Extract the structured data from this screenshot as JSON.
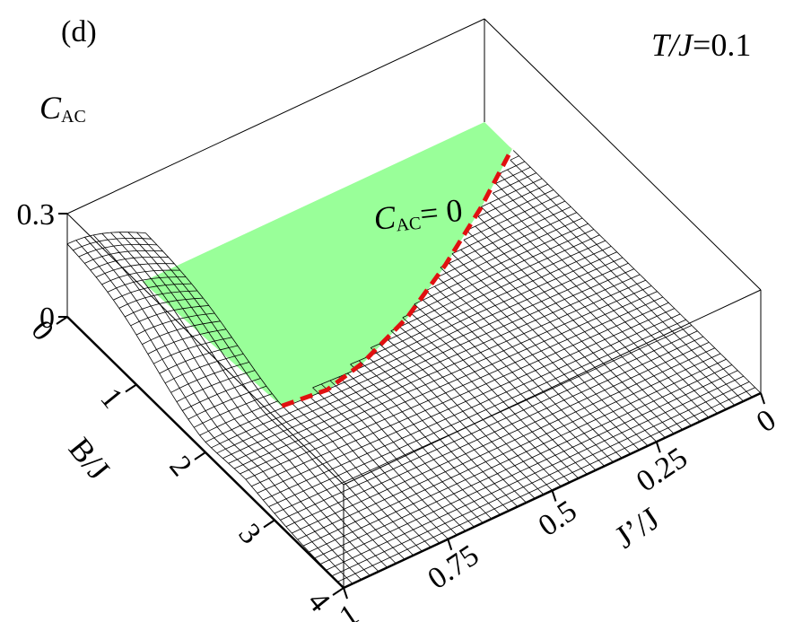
{
  "chart_data": {
    "type": "surface",
    "panel_label": "(d)",
    "annotation": {
      "prefix": "T/J",
      "value": "=0.1"
    },
    "zero_region_label": {
      "main": "C",
      "sub": "AC",
      "rest": "= 0"
    },
    "z_axis": {
      "label_main": "C",
      "label_sub": "AC",
      "range": [
        0,
        0.3
      ],
      "ticks": [
        "0.3",
        "0"
      ]
    },
    "b_axis": {
      "label": "B/J",
      "range": [
        0,
        4
      ],
      "ticks": [
        "0",
        "1",
        "2",
        "3",
        "4"
      ]
    },
    "jp_axis": {
      "label": "J’/J",
      "range": [
        0,
        1
      ],
      "ticks": [
        "1",
        "0.75",
        "0.5",
        "0.25",
        "0"
      ]
    },
    "zero_region_color": "#99ff99",
    "boundary_color": "#e01010",
    "mesh_color": "#000000",
    "surface": {
      "description_points": [
        {
          "jp": 1.0,
          "b": 0.0,
          "c": 0.22
        },
        {
          "jp": 1.0,
          "b": 0.9,
          "c": 0.22
        },
        {
          "jp": 1.0,
          "b": 1.6,
          "c": 0.12
        },
        {
          "jp": 1.0,
          "b": 3.0,
          "c": 0.01
        },
        {
          "jp": 1.0,
          "b": 4.0,
          "c": 0.0
        },
        {
          "jp": 0.5,
          "b": 2.2,
          "c": 0.03
        },
        {
          "jp": 0.0,
          "b": 2.0,
          "c": 0.0
        },
        {
          "jp": 0.0,
          "b": 4.0,
          "c": 0.0
        }
      ],
      "boundary_curve": [
        {
          "jp": 0.8,
          "b": 1.9
        },
        {
          "jp": 0.7,
          "b": 1.95
        },
        {
          "jp": 0.6,
          "b": 1.85
        },
        {
          "jp": 0.45,
          "b": 1.6
        },
        {
          "jp": 0.3,
          "b": 1.25
        },
        {
          "jp": 0.15,
          "b": 0.85
        },
        {
          "jp": 0.0,
          "b": 0.4
        }
      ]
    }
  }
}
